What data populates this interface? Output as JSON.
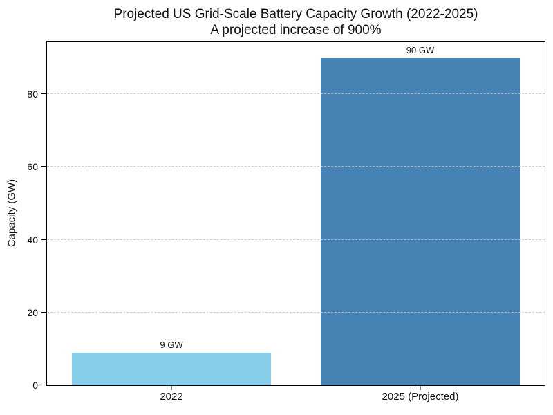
{
  "chart_data": {
    "type": "bar",
    "title": "Projected US Grid-Scale Battery Capacity Growth (2022-2025)",
    "subtitle": "A projected increase of 900%",
    "categories": [
      "2022",
      "2025 (Projected)"
    ],
    "values": [
      9,
      90
    ],
    "bar_labels": [
      "9 GW",
      "90 GW"
    ],
    "bar_colors": [
      "#87CEEB",
      "#4682B4"
    ],
    "xlabel": "",
    "ylabel": "Capacity (GW)",
    "ylim": [
      0,
      94.5
    ],
    "yticks": [
      0,
      20,
      40,
      60,
      80
    ],
    "grid": "horizontal dashed, drawn above bars",
    "grid_color": "#c3c3c3",
    "legend": "none",
    "background_color": "#ffffff",
    "text_color": "#111111"
  }
}
